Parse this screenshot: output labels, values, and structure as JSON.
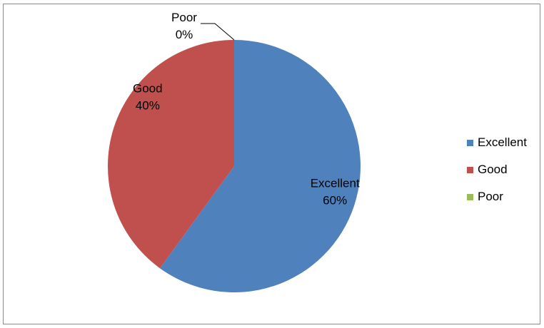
{
  "chart_data": {
    "type": "pie",
    "categories": [
      "Excellent",
      "Good",
      "Poor"
    ],
    "values": [
      60,
      40,
      0
    ],
    "data_labels": [
      {
        "category": "Excellent",
        "percent": "60%"
      },
      {
        "category": "Good",
        "percent": "40%"
      },
      {
        "category": "Poor",
        "percent": "0%"
      }
    ],
    "colors": [
      "#4f81bd",
      "#c0504d",
      "#9bbb59"
    ],
    "legend_placement": "right",
    "title": ""
  },
  "legend": {
    "items": [
      {
        "label": "Excellent",
        "color": "#4f81bd"
      },
      {
        "label": "Good",
        "color": "#c0504d"
      },
      {
        "label": "Poor",
        "color": "#9bbb59"
      }
    ]
  }
}
